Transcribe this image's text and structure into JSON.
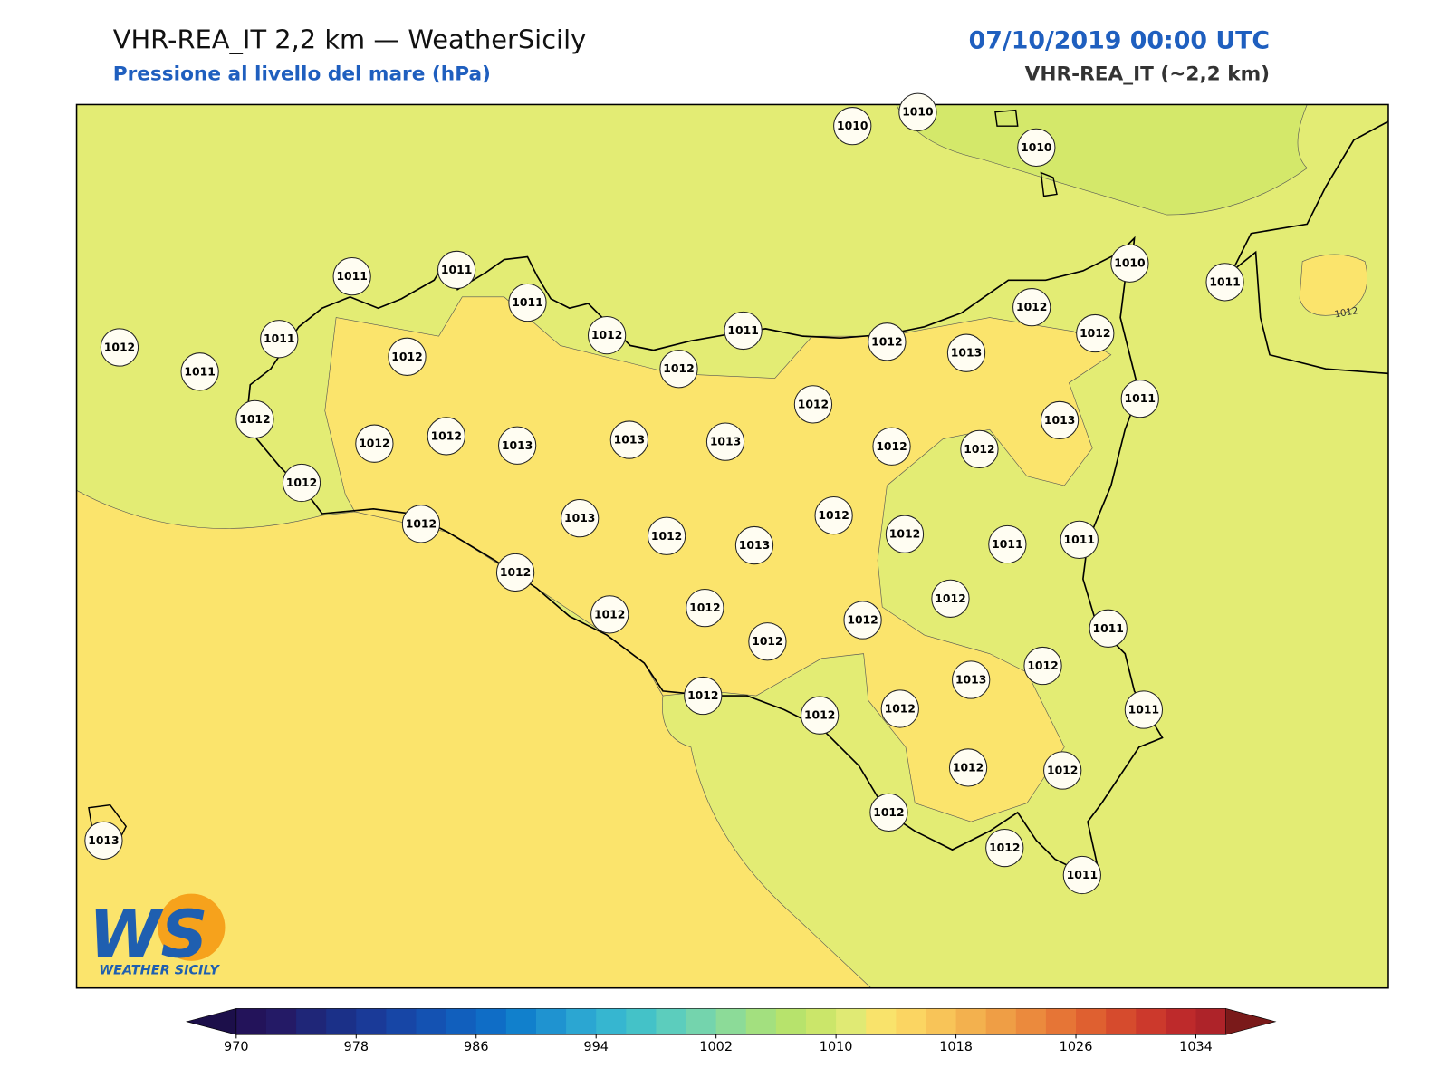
{
  "header": {
    "title": "VHR-REA_IT 2,2 km — WeatherSicily",
    "subtitle": "Pressione al livello del mare (hPa)",
    "date": "07/10/2019 00:00 UTC",
    "model": "VHR-REA_IT (~2,2 km)"
  },
  "map": {
    "contour_label": "1012",
    "stations": [
      1010,
      1010,
      1010,
      1010,
      1011,
      1011,
      1011,
      1011,
      1012,
      1011,
      1012,
      1012,
      1012,
      1012,
      1013,
      1012,
      1011,
      1011,
      1012,
      1012,
      1012,
      1011,
      1013,
      1012,
      1012,
      1013,
      1013,
      1013,
      1012,
      1012,
      1012,
      1013,
      1012,
      1012,
      1012,
      1013,
      1012,
      1011,
      1011,
      1012,
      1012,
      1012,
      1012,
      1012,
      1012,
      1011,
      1013,
      1012,
      1012,
      1012,
      1012,
      1011,
      1012,
      1012,
      1012,
      1013,
      1012,
      1011
    ]
  },
  "colorbar": {
    "lim": [
      970,
      1036
    ],
    "ticks": [
      970,
      978,
      986,
      994,
      1002,
      1010,
      1018,
      1026,
      1034
    ],
    "under_color": "#1c0f4a",
    "over_color": "#7a1a1a",
    "colors": [
      "#23135a",
      "#241a66",
      "#1f2678",
      "#1b3088",
      "#1a3a98",
      "#1746a6",
      "#1452b2",
      "#115fbd",
      "#0f6dc6",
      "#1180cc",
      "#1f93d0",
      "#2ba6d2",
      "#36b6d0",
      "#44c2c8",
      "#5ccdbd",
      "#74d4ad",
      "#8cdb98",
      "#a3e07f",
      "#b7e36c",
      "#cbe66a",
      "#e0ea74",
      "#f9e36b",
      "#fbd562",
      "#f8c458",
      "#f3b14e",
      "#ef9e45",
      "#eb8a3d",
      "#e67536",
      "#df6030",
      "#d64b2d",
      "#cc392c",
      "#be2a2b",
      "#ae2329"
    ]
  },
  "logo": {
    "mark": "WS",
    "text": "WEATHER SICILY"
  }
}
